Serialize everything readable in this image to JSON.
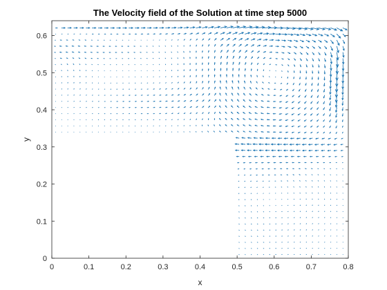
{
  "chart_data": {
    "type": "quiver",
    "title": "The Velocity field of the Solution at time step 5000",
    "xlabel": "x",
    "ylabel": "y",
    "xlim": [
      0,
      0.8
    ],
    "ylim": [
      0,
      0.64
    ],
    "xticks": [
      "0",
      "0.1",
      "0.2",
      "0.3",
      "0.4",
      "0.5",
      "0.6",
      "0.7",
      "0.8"
    ],
    "xtick_values": [
      0,
      0.1,
      0.2,
      0.3,
      0.4,
      0.5,
      0.6,
      0.7,
      0.8
    ],
    "yticks": [
      "0",
      "0.1",
      "0.2",
      "0.3",
      "0.4",
      "0.5",
      "0.6"
    ],
    "ytick_values": [
      0,
      0.1,
      0.2,
      0.3,
      0.4,
      0.5,
      0.6
    ],
    "grid": false,
    "arrow_color": "#1f77b4",
    "domain": "L-shaped cavity: upper region y in [0.33, 0.64] for x in [0, 0.8]; lower region x in [0.5, 0.8] for y in [0, 0.33]",
    "vortex_center": [
      0.6,
      0.5
    ]
  }
}
